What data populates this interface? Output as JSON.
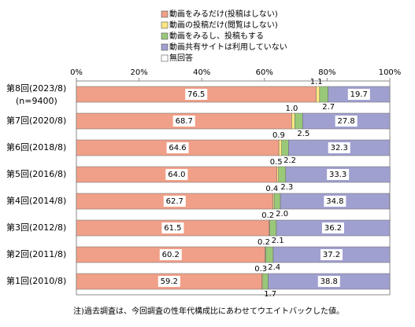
{
  "chart_data": {
    "type": "stacked-bar-horizontal",
    "categories": [
      "第8回(2023/8)",
      "第7回(2020/8)",
      "第6回(2018/8)",
      "第5回(2016/8)",
      "第4回(2014/8)",
      "第3回(2012/8)",
      "第2回(2011/8)",
      "第1回(2010/8)"
    ],
    "sample_note": "(n=9400)",
    "series": [
      {
        "name": "動画をみるだけ(投稿はしない)",
        "color": "#f0a088",
        "values": [
          76.5,
          68.7,
          64.6,
          64.0,
          62.7,
          61.5,
          60.2,
          59.2
        ],
        "value_labels": [
          "76.5",
          "68.7",
          "64.6",
          "64.0",
          "62.7",
          "61.5",
          "60.2",
          "59.2"
        ]
      },
      {
        "name": "動画の投稿だけ(閲覧はしない)",
        "color": "#ffe880",
        "values": [
          1.1,
          1.0,
          0.9,
          0.5,
          0.4,
          0.2,
          0.2,
          0.3
        ],
        "value_labels": [
          "1.1",
          "1.0",
          "0.9",
          "0.5",
          "0.4",
          "0.2",
          "0.2",
          "0.3"
        ]
      },
      {
        "name": "動画をみるし、投稿もする",
        "color": "#98c878",
        "values": [
          2.7,
          2.5,
          2.2,
          2.3,
          2.0,
          2.1,
          2.4,
          1.7
        ],
        "value_labels": [
          "2.7",
          "2.5",
          "2.2",
          "2.3",
          "2.0",
          "2.1",
          "2.4",
          "1.7"
        ]
      },
      {
        "name": "動画共有サイトは利用していない",
        "color": "#a0a0d0",
        "values": [
          19.7,
          27.8,
          32.3,
          33.3,
          34.8,
          36.2,
          37.2,
          38.8
        ],
        "value_labels": [
          "19.7",
          "27.8",
          "32.3",
          "33.3",
          "34.8",
          "36.2",
          "37.2",
          "38.8"
        ]
      },
      {
        "name": "無回答",
        "color": "#ffffff",
        "values": [
          null,
          null,
          null,
          null,
          null,
          null,
          null,
          null
        ]
      }
    ],
    "xlim": [
      0,
      100
    ],
    "xticks": [
      {
        "value": 0,
        "label": "0%"
      },
      {
        "value": 20,
        "label": "20%"
      },
      {
        "value": 40,
        "label": "40%"
      },
      {
        "value": 60,
        "label": "60%"
      },
      {
        "value": 80,
        "label": "80%"
      },
      {
        "value": 100,
        "label": "100%"
      }
    ],
    "note": "注)過去調査は、今回調査の性年代構成比にあわせてウエイトバックした値。"
  }
}
